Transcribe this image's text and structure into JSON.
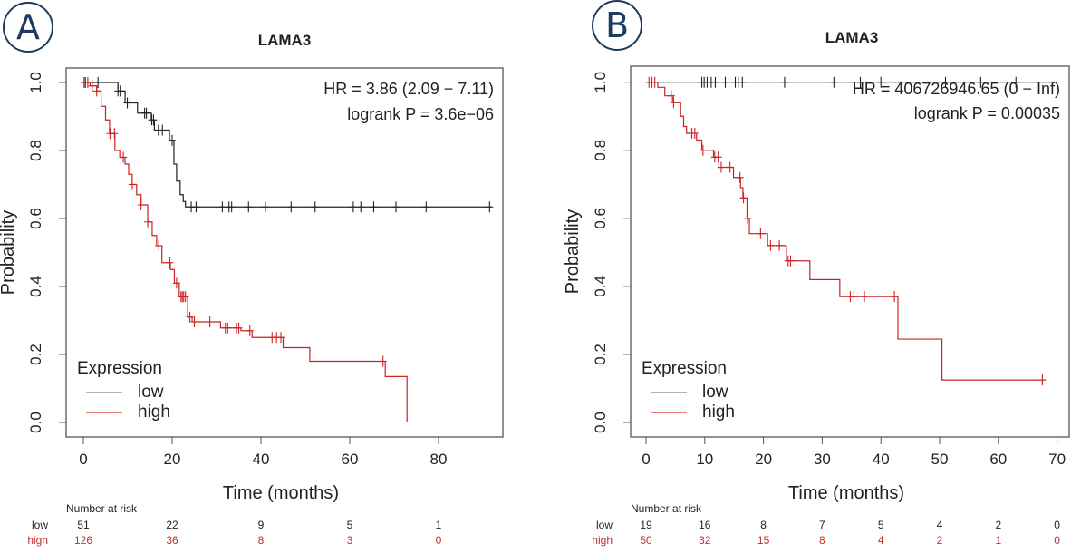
{
  "chart_data": [
    {
      "type": "line",
      "panel_label": "A",
      "title": "LAMA3",
      "xlabel": "Time (months)",
      "ylabel": "Probability",
      "xlim": [
        0,
        92
      ],
      "ylim": [
        0,
        1
      ],
      "xticks": [
        "0",
        "20",
        "40",
        "60",
        "80"
      ],
      "yticks": [
        "0.0",
        "0.2",
        "0.4",
        "0.6",
        "0.8",
        "1.0"
      ],
      "grid": false,
      "annotations": [
        "HR = 3.86 (2.09 − 7.11)",
        "logrank P = 3.6e−06"
      ],
      "legend": {
        "title": "Expression",
        "placement": "bottom-left",
        "entries": [
          "low",
          "high"
        ]
      },
      "series": [
        {
          "name": "low",
          "color": "#222222",
          "steps": [
            [
              0,
              1.0
            ],
            [
              7.8,
              0.975
            ],
            [
              9.4,
              0.94
            ],
            [
              12.2,
              0.91
            ],
            [
              15.3,
              0.89
            ],
            [
              16.0,
              0.86
            ],
            [
              19.4,
              0.83
            ],
            [
              20.4,
              0.76
            ],
            [
              21.0,
              0.71
            ],
            [
              21.8,
              0.67
            ],
            [
              22.5,
              0.65
            ],
            [
              23.0,
              0.634
            ]
          ],
          "end": 92,
          "censored": [
            0.2,
            3.3,
            7.8,
            8.3,
            9.9,
            10.5,
            13.8,
            14.2,
            15.4,
            15.8,
            16.9,
            17.8,
            20.0,
            24.3,
            25.4,
            31.3,
            32.8,
            33.4,
            37.2,
            41.0,
            46.8,
            52.2,
            60.8,
            62.5,
            65.4,
            70.4,
            77.2,
            91.5
          ]
        },
        {
          "name": "high",
          "color": "#cc2222",
          "steps": [
            [
              0,
              1.0
            ],
            [
              1.5,
              0.99
            ],
            [
              3.0,
              0.975
            ],
            [
              4.0,
              0.93
            ],
            [
              5.0,
              0.89
            ],
            [
              5.9,
              0.85
            ],
            [
              7.1,
              0.8
            ],
            [
              8.2,
              0.78
            ],
            [
              9.4,
              0.76
            ],
            [
              10.2,
              0.73
            ],
            [
              11.0,
              0.7
            ],
            [
              12.0,
              0.67
            ],
            [
              13.0,
              0.64
            ],
            [
              14.5,
              0.59
            ],
            [
              15.5,
              0.55
            ],
            [
              16.5,
              0.52
            ],
            [
              17.7,
              0.47
            ],
            [
              19.6,
              0.45
            ],
            [
              20.5,
              0.41
            ],
            [
              21.6,
              0.37
            ],
            [
              23.5,
              0.31
            ],
            [
              24.5,
              0.296
            ],
            [
              30.9,
              0.278
            ],
            [
              35.5,
              0.27
            ],
            [
              38.0,
              0.25
            ],
            [
              45.0,
              0.22
            ],
            [
              51.0,
              0.18
            ],
            [
              68.0,
              0.135
            ],
            [
              72.9,
              0.065
            ]
          ],
          "end": 72.9,
          "end_value": 0.0,
          "censored": [
            0.5,
            1.0,
            2.0,
            3.0,
            6.0,
            7.0,
            9.0,
            11.0,
            13.0,
            14.5,
            17.0,
            19.5,
            21.0,
            22.0,
            22.3,
            22.6,
            23.0,
            24.0,
            25.0,
            28.5,
            32.0,
            32.5,
            34.5,
            35.0,
            37.5,
            42.5,
            43.5,
            44.5,
            67.5
          ]
        }
      ],
      "risk_table": {
        "title": "Number at risk",
        "times": [
          0,
          20,
          40,
          60,
          80
        ],
        "rows": [
          {
            "label": "low",
            "values": [
              "51",
              "22",
              "9",
              "5",
              "1"
            ]
          },
          {
            "label": "high",
            "values": [
              "126",
              "36",
              "8",
              "3",
              "0"
            ]
          }
        ]
      }
    },
    {
      "type": "line",
      "panel_label": "B",
      "title": "LAMA3",
      "xlabel": "Time (months)",
      "ylabel": "Probability",
      "xlim": [
        0,
        70
      ],
      "ylim": [
        0,
        1
      ],
      "xticks": [
        "0",
        "10",
        "20",
        "30",
        "40",
        "50",
        "60",
        "70"
      ],
      "yticks": [
        "0.0",
        "0.2",
        "0.4",
        "0.6",
        "0.8",
        "1.0"
      ],
      "grid": false,
      "annotations": [
        "HR = 406726946.65 (0 − Inf)",
        "logrank P = 0.00035"
      ],
      "legend": {
        "title": "Expression",
        "placement": "bottom-left",
        "entries": [
          "low",
          "high"
        ]
      },
      "series": [
        {
          "name": "low",
          "color": "#222222",
          "steps": [
            [
              0,
              1.0
            ]
          ],
          "end": 70,
          "censored": [
            9.5,
            9.9,
            10.4,
            11.1,
            11.8,
            13.5,
            15.2,
            15.7,
            16.4,
            23.6,
            32,
            36.5,
            40,
            51,
            57,
            63
          ]
        },
        {
          "name": "high",
          "color": "#cc2222",
          "steps": [
            [
              0,
              1.0
            ],
            [
              2.0,
              0.985
            ],
            [
              3.2,
              0.96
            ],
            [
              4.6,
              0.94
            ],
            [
              5.9,
              0.9
            ],
            [
              6.4,
              0.87
            ],
            [
              6.9,
              0.85
            ],
            [
              8.6,
              0.83
            ],
            [
              9.5,
              0.8
            ],
            [
              11.5,
              0.78
            ],
            [
              12.4,
              0.75
            ],
            [
              14.9,
              0.72
            ],
            [
              16.1,
              0.69
            ],
            [
              16.5,
              0.66
            ],
            [
              17.2,
              0.6
            ],
            [
              17.6,
              0.555
            ],
            [
              20.7,
              0.52
            ],
            [
              23.9,
              0.475
            ],
            [
              27.9,
              0.42
            ],
            [
              33.0,
              0.37
            ],
            [
              42.9,
              0.245
            ],
            [
              50.4,
              0.125
            ]
          ],
          "end": 67.8,
          "censored": [
            0.5,
            1.0,
            1.5,
            4.3,
            4.7,
            7.8,
            8.3,
            9.7,
            11.7,
            12.3,
            12.8,
            14.3,
            16.0,
            16.6,
            17.3,
            19.5,
            21.2,
            22.7,
            24.2,
            24.6,
            34.8,
            35.4,
            37.2,
            42.3,
            67.5
          ]
        }
      ],
      "risk_table": {
        "title": "Number at risk",
        "times": [
          0,
          10,
          20,
          30,
          40,
          50,
          60,
          70
        ],
        "rows": [
          {
            "label": "low",
            "values": [
              "19",
              "16",
              "8",
              "7",
              "5",
              "4",
              "2",
              "0"
            ]
          },
          {
            "label": "high",
            "values": [
              "50",
              "32",
              "15",
              "8",
              "4",
              "2",
              "1",
              "0"
            ]
          }
        ]
      }
    }
  ]
}
